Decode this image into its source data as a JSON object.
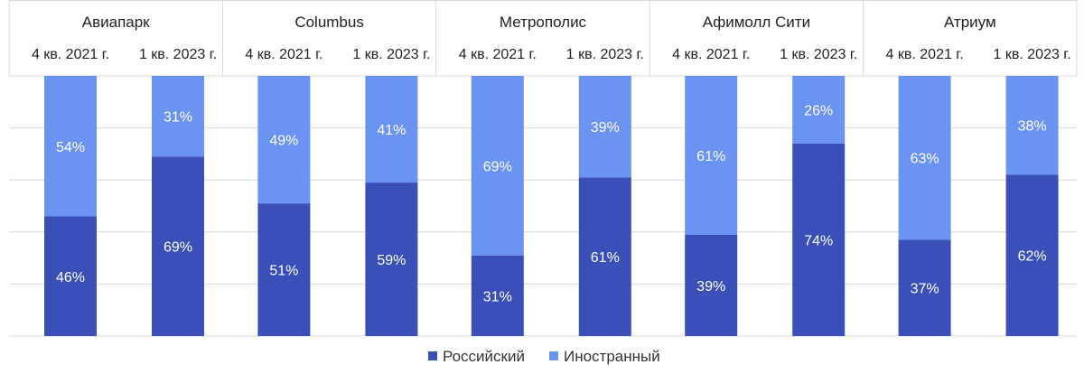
{
  "chart_data": {
    "type": "bar",
    "stacked": true,
    "normalized": true,
    "groups": [
      "Авиапарк",
      "Columbus",
      "Метрополис",
      "Афимолл Сити",
      "Атриум"
    ],
    "periods": [
      "4 кв. 2021 г.",
      "1 кв. 2023 г."
    ],
    "series": [
      {
        "name": "Российский",
        "color": "#3a50b8",
        "values": [
          46,
          69,
          51,
          59,
          31,
          61,
          39,
          74,
          37,
          62
        ],
        "labels": [
          "46%",
          "69%",
          "51%",
          "59%",
          "31%",
          "61%",
          "39%",
          "74%",
          "37%",
          "62%"
        ]
      },
      {
        "name": "Иностранный",
        "color": "#6b93f2",
        "values": [
          54,
          31,
          49,
          41,
          69,
          39,
          61,
          26,
          63,
          38
        ],
        "labels": [
          "54%",
          "31%",
          "49%",
          "41%",
          "69%",
          "39%",
          "61%",
          "26%",
          "63%",
          "38%"
        ]
      }
    ],
    "ylim": [
      0,
      100
    ],
    "grid": true,
    "legend": "bottom"
  }
}
